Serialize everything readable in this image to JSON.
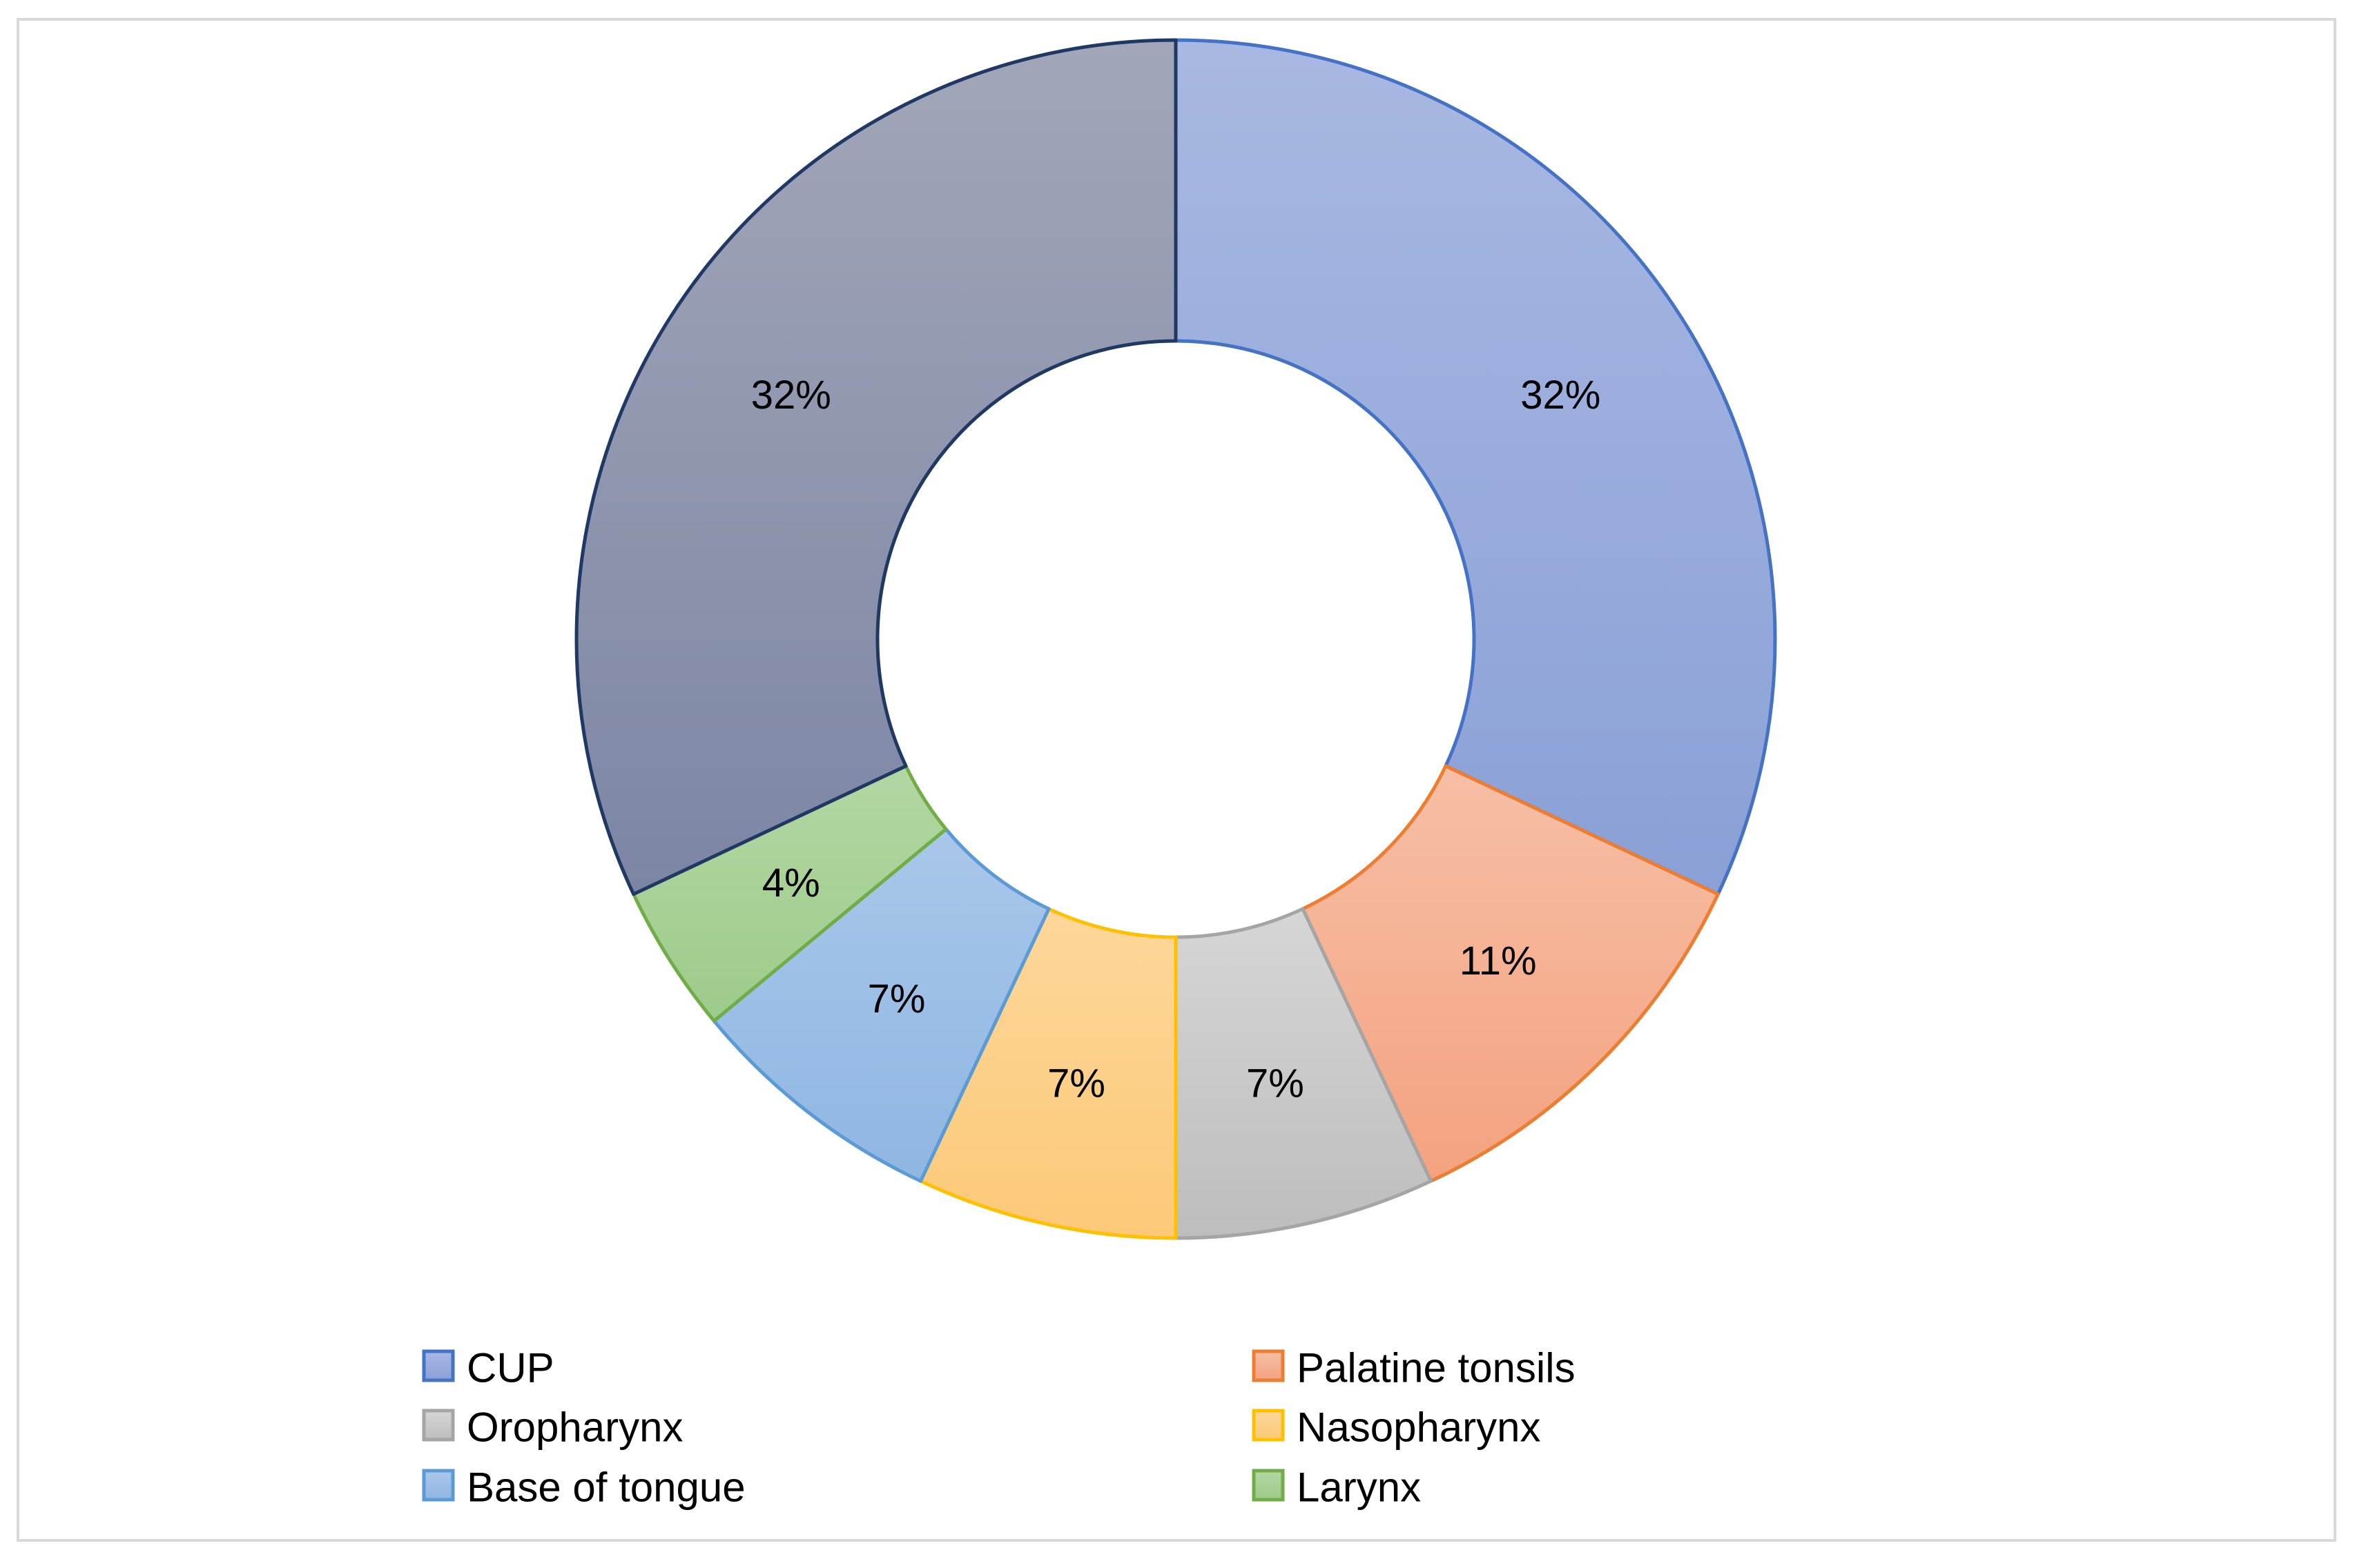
{
  "chart_data": {
    "type": "pie",
    "variant": "doughnut",
    "title": "",
    "categories": [
      "CUP",
      "Palatine tonsils",
      "Oropharynx",
      "Nasopharynx",
      "Base of tongue",
      "Larynx",
      ""
    ],
    "values": [
      32,
      11,
      7,
      7,
      7,
      4,
      32
    ],
    "data_labels": [
      "32%",
      "11%",
      "7%",
      "7%",
      "7%",
      "4%",
      "32%"
    ],
    "unit": "%",
    "legend": {
      "position": "bottom",
      "entries": [
        "CUP",
        "Palatine tonsils",
        "Oropharynx",
        "Nasopharynx",
        "Base of tongue",
        "Larynx"
      ]
    },
    "colors": {
      "fills": [
        [
          "#a8b8e2",
          "#8aa0d6"
        ],
        [
          "#f7bfa6",
          "#f3a27f"
        ],
        [
          "#d6d6d6",
          "#bdbdbd"
        ],
        [
          "#fdd79a",
          "#fcc978"
        ],
        [
          "#a9c7ea",
          "#8fb6e2"
        ],
        [
          "#b3d7a3",
          "#9dcb8a"
        ],
        [
          "#a2a6b8",
          "#7c86a4"
        ]
      ],
      "strokes": [
        "#4472c4",
        "#ed7d31",
        "#a5a5a5",
        "#ffc000",
        "#5b9bd5",
        "#70ad47",
        "#203864"
      ]
    }
  }
}
